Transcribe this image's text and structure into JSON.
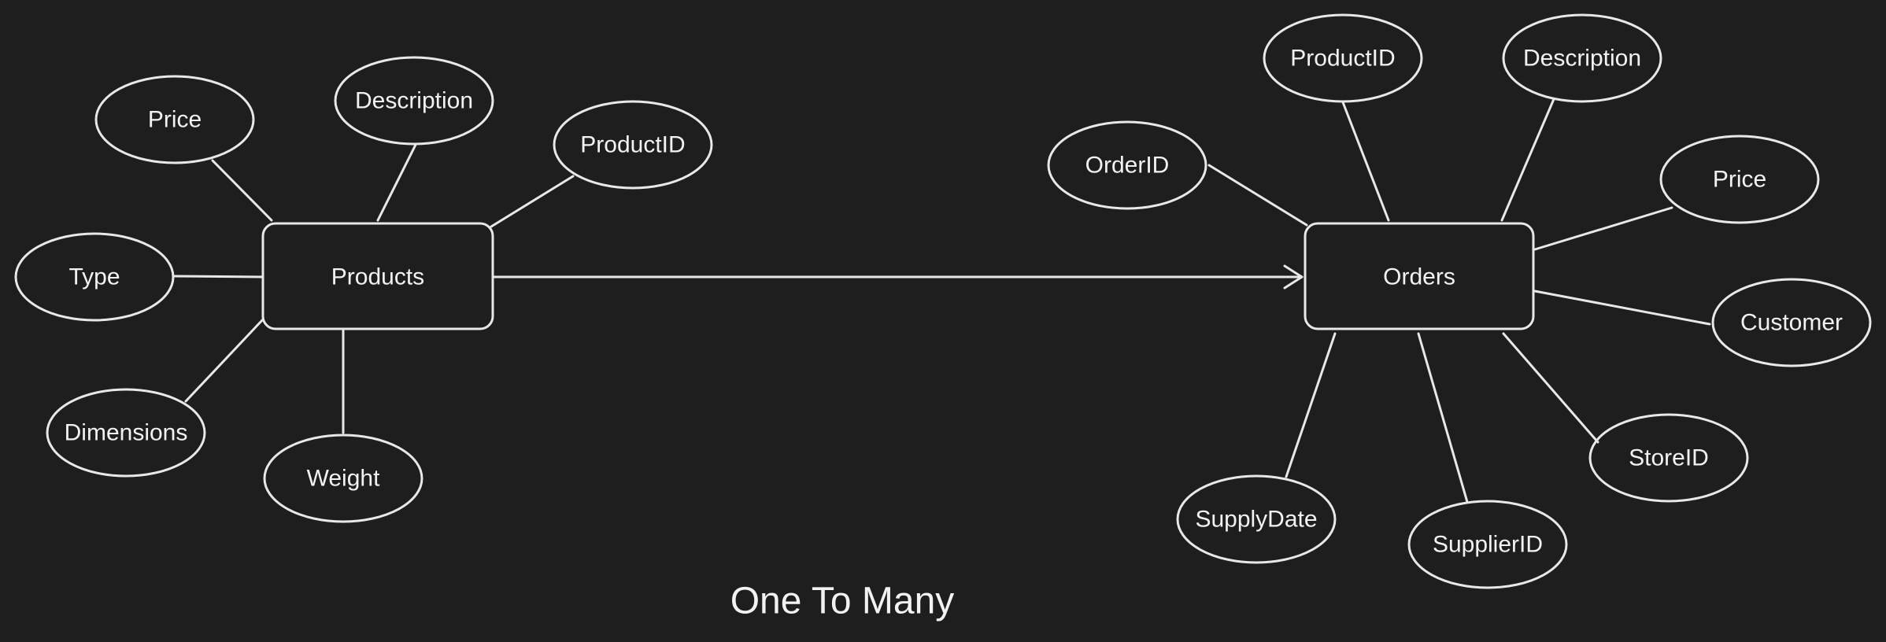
{
  "entities": {
    "products": "Products",
    "orders": "Orders"
  },
  "products_attributes": {
    "price": "Price",
    "description": "Description",
    "product_id": "ProductID",
    "type": "Type",
    "dimensions": "Dimensions",
    "weight": "Weight"
  },
  "orders_attributes": {
    "order_id": "OrderID",
    "product_id": "ProductID",
    "description": "Description",
    "price": "Price",
    "customer": "Customer",
    "store_id": "StoreID",
    "supplier_id": "SupplierID",
    "supply_date": "SupplyDate"
  },
  "relationship": {
    "label": "One To Many"
  },
  "colors": {
    "background": "#1e1e1e",
    "stroke": "#e8e8e8",
    "text": "#f2f2f2"
  }
}
